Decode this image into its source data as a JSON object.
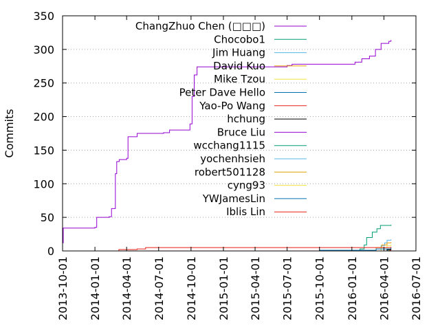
{
  "chart_data": {
    "type": "line",
    "title": "",
    "xlabel": "",
    "ylabel": "Commits",
    "x_axis": {
      "type": "date",
      "min": "2013-10-01",
      "max": "2016-07-01",
      "ticks": [
        "2013-10-01",
        "2014-01-01",
        "2014-04-01",
        "2014-07-01",
        "2014-10-01",
        "2015-01-01",
        "2015-04-01",
        "2015-07-01",
        "2015-10-01",
        "2016-01-01",
        "2016-04-01",
        "2016-07-01"
      ]
    },
    "y_axis": {
      "min": 0,
      "max": 350,
      "ticks": [
        0,
        50,
        100,
        150,
        200,
        250,
        300,
        350
      ]
    },
    "grid": {
      "y": true,
      "x": false,
      "style": "dotted"
    },
    "legend": {
      "position": "top-right"
    },
    "series": [
      {
        "name": "ChangZhuo Chen (□□□)",
        "color": "#9400d3",
        "points": [
          [
            "2013-10-01",
            12
          ],
          [
            "2013-10-03",
            34
          ],
          [
            "2014-01-01",
            35
          ],
          [
            "2014-01-06",
            50
          ],
          [
            "2014-02-10",
            51
          ],
          [
            "2014-02-17",
            63
          ],
          [
            "2014-02-28",
            115
          ],
          [
            "2014-03-04",
            133
          ],
          [
            "2014-03-11",
            136
          ],
          [
            "2014-04-01",
            138
          ],
          [
            "2014-04-05",
            170
          ],
          [
            "2014-05-01",
            175
          ],
          [
            "2014-07-15",
            176
          ],
          [
            "2014-08-01",
            180
          ],
          [
            "2014-09-28",
            189
          ],
          [
            "2014-10-04",
            230
          ],
          [
            "2014-10-10",
            262
          ],
          [
            "2014-10-18",
            274
          ],
          [
            "2015-07-01",
            276
          ],
          [
            "2015-07-15",
            278
          ],
          [
            "2016-01-10",
            281
          ],
          [
            "2016-01-29",
            286
          ],
          [
            "2016-02-20",
            290
          ],
          [
            "2016-03-08",
            300
          ],
          [
            "2016-03-24",
            309
          ],
          [
            "2016-04-15",
            312
          ],
          [
            "2016-04-21",
            314
          ]
        ]
      },
      {
        "name": "Chocobo1",
        "color": "#009e73",
        "points": [
          [
            "2015-12-01",
            0
          ],
          [
            "2016-01-01",
            1
          ],
          [
            "2016-01-24",
            3
          ],
          [
            "2016-02-05",
            9
          ],
          [
            "2016-02-12",
            20
          ],
          [
            "2016-02-28",
            28
          ],
          [
            "2016-03-12",
            33
          ],
          [
            "2016-03-22",
            38
          ],
          [
            "2016-04-21",
            39
          ]
        ]
      },
      {
        "name": "Jim Huang",
        "color": "#56b4e9",
        "points": [
          [
            "2016-03-01",
            0
          ],
          [
            "2016-03-24",
            8
          ],
          [
            "2016-04-03",
            12
          ],
          [
            "2016-04-10",
            16
          ],
          [
            "2016-04-21",
            17
          ]
        ]
      },
      {
        "name": "David Kuo",
        "color": "#e69f00",
        "points": [
          [
            "2016-02-01",
            0
          ],
          [
            "2016-03-10",
            5
          ],
          [
            "2016-03-26",
            9
          ],
          [
            "2016-04-10",
            12
          ],
          [
            "2016-04-21",
            13
          ]
        ]
      },
      {
        "name": "Mike Tzou",
        "color": "#f0e442",
        "points": [
          [
            "2016-03-01",
            0
          ],
          [
            "2016-03-24",
            5
          ],
          [
            "2016-04-10",
            8
          ],
          [
            "2016-04-21",
            9
          ]
        ]
      },
      {
        "name": "Peter Dave Hello",
        "color": "#0072b2",
        "points": [
          [
            "2014-06-01",
            0
          ],
          [
            "2015-10-01",
            1
          ],
          [
            "2016-03-10",
            3
          ],
          [
            "2016-04-21",
            5
          ]
        ]
      },
      {
        "name": "Yao-Po Wang",
        "color": "#e51e10",
        "points": [
          [
            "2014-03-01",
            0
          ],
          [
            "2014-03-10",
            2
          ],
          [
            "2014-05-01",
            3
          ],
          [
            "2014-05-25",
            5
          ],
          [
            "2016-03-01",
            5
          ],
          [
            "2016-04-21",
            6
          ]
        ]
      },
      {
        "name": "hchung",
        "color": "#000000",
        "points": [
          [
            "2016-03-15",
            0
          ],
          [
            "2016-04-10",
            2
          ],
          [
            "2016-04-21",
            3
          ]
        ]
      },
      {
        "name": "Bruce Liu",
        "color": "#9400d3",
        "points": [
          [
            "2016-03-20",
            0
          ],
          [
            "2016-04-15",
            1
          ],
          [
            "2016-04-21",
            1
          ]
        ]
      },
      {
        "name": "wcchang1115",
        "color": "#009e73",
        "points": [
          [
            "2016-03-20",
            0
          ],
          [
            "2016-04-12",
            1
          ],
          [
            "2016-04-21",
            1
          ]
        ]
      },
      {
        "name": "yochenhsieh",
        "color": "#56b4e9",
        "points": [
          [
            "2016-04-01",
            0
          ],
          [
            "2016-04-12",
            1
          ],
          [
            "2016-04-21",
            1
          ]
        ]
      },
      {
        "name": "robert501128",
        "color": "#e69f00",
        "points": [
          [
            "2016-04-01",
            0
          ],
          [
            "2016-04-15",
            1
          ],
          [
            "2016-04-21",
            1
          ]
        ]
      },
      {
        "name": "cyng93",
        "color": "#f0e442",
        "points": [
          [
            "2016-04-01",
            0
          ],
          [
            "2016-04-17",
            1
          ],
          [
            "2016-04-21",
            1
          ]
        ]
      },
      {
        "name": "YWJamesLin",
        "color": "#0072b2",
        "points": [
          [
            "2016-04-01",
            0
          ],
          [
            "2016-04-18",
            1
          ],
          [
            "2016-04-21",
            1
          ]
        ]
      },
      {
        "name": "Iblis Lin",
        "color": "#e51e10",
        "points": [
          [
            "2016-04-01",
            0
          ],
          [
            "2016-04-19",
            1
          ],
          [
            "2016-04-21",
            1
          ]
        ]
      }
    ]
  }
}
